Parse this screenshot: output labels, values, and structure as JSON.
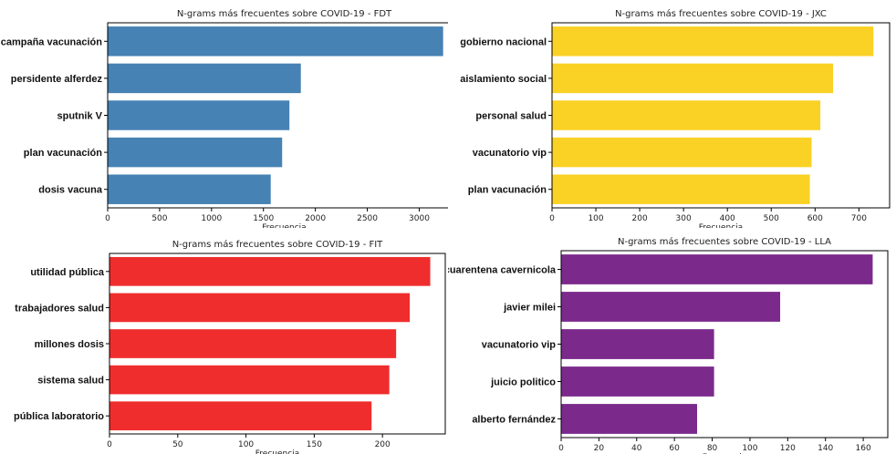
{
  "chart_data": [
    {
      "type": "bar",
      "orientation": "horizontal",
      "title": "N-grams más frecuentes sobre COVID-19 - FDT",
      "xlabel": "Frecuencia",
      "color": "#4682b4",
      "categories": [
        "campaña vacunación",
        "persidente alferdez",
        "sputnik V",
        "plan vacunación",
        "dosis vacuna"
      ],
      "values": [
        3230,
        1860,
        1750,
        1680,
        1570
      ],
      "xlim": [
        0,
        3400
      ],
      "xticks": [
        0,
        500,
        1000,
        1500,
        2000,
        2500,
        3000
      ],
      "grid": false
    },
    {
      "type": "bar",
      "orientation": "horizontal",
      "title": "N-grams más frecuentes sobre COVID-19 - JXC",
      "xlabel": "Frecuencia",
      "color": "#fad125",
      "categories": [
        "gobierno nacional",
        "aislamiento social",
        "personal salud",
        "vacunatorio vip",
        "plan vacunación"
      ],
      "values": [
        733,
        641,
        612,
        592,
        588
      ],
      "xlim": [
        0,
        770
      ],
      "xticks": [
        0,
        100,
        200,
        300,
        400,
        500,
        600,
        700
      ],
      "grid": false
    },
    {
      "type": "bar",
      "orientation": "horizontal",
      "title": "N-grams más frecuentes sobre COVID-19 - FIT",
      "xlabel": "Frecuencia",
      "color": "#ef2d2d",
      "categories": [
        "utilidad pública",
        "trabajadores salud",
        "millones dosis",
        "sistema salud",
        "pública laboratorio"
      ],
      "values": [
        235,
        220,
        210,
        205,
        192
      ],
      "xlim": [
        0,
        246
      ],
      "xticks": [
        0,
        50,
        100,
        150,
        200
      ],
      "grid": false
    },
    {
      "type": "bar",
      "orientation": "horizontal",
      "title": "N-grams más frecuentes sobre COVID-19 - LLA",
      "xlabel": "Frecuencia",
      "color": "#7b2a8c",
      "categories": [
        "cuarentena cavernicola",
        "javier milei",
        "vacunatorio vip",
        "juicio politico",
        "alberto fernández"
      ],
      "values": [
        165,
        116,
        81,
        81,
        72
      ],
      "xlim": [
        0,
        173
      ],
      "xticks": [
        0,
        20,
        40,
        60,
        80,
        100,
        120,
        140,
        160
      ],
      "grid": false
    }
  ]
}
